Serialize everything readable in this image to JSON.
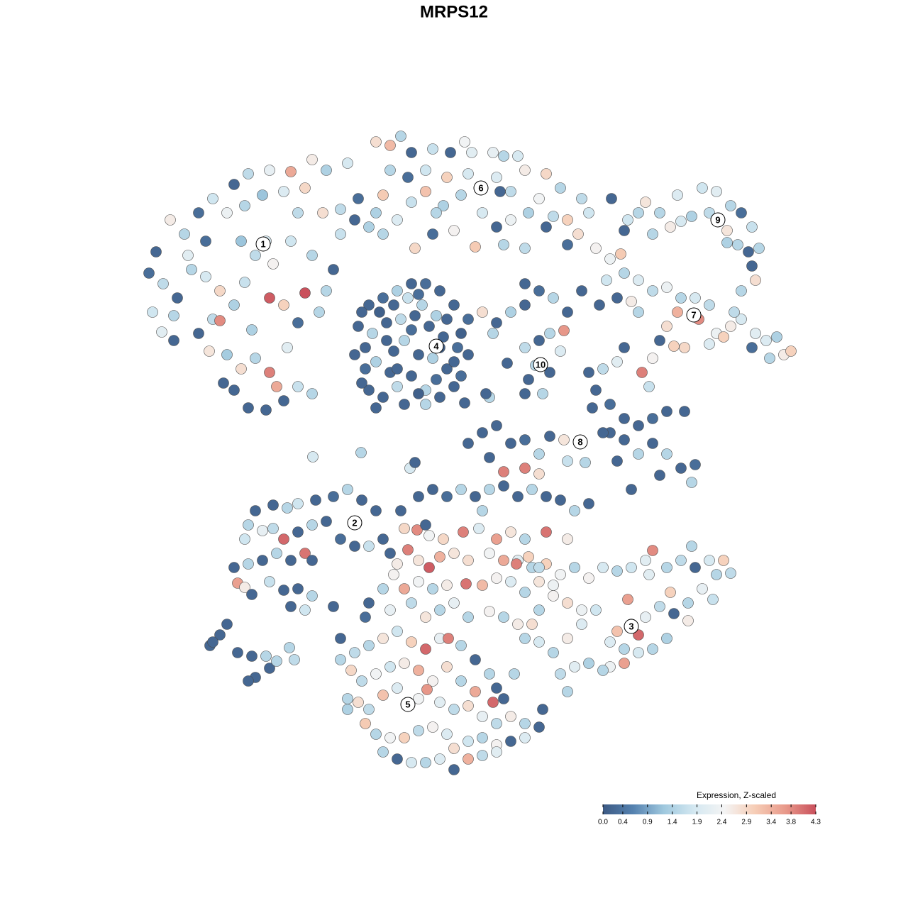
{
  "chart_data": {
    "type": "scatter",
    "title": "MRPS12",
    "xlim": [
      0,
      1280
    ],
    "ylim": [
      1280,
      0
    ],
    "x": [
      220,
      240,
      260,
      280,
      300,
      330,
      350,
      380,
      410,
      440,
      460,
      490,
      320,
      345,
      370,
      400,
      430,
      455,
      480,
      505,
      520,
      210,
      230,
      250,
      215,
      228,
      245,
      270,
      290,
      310,
      330,
      300,
      310,
      280,
      295,
      320,
      340,
      360,
      380,
      390,
      420,
      405,
      420,
      400,
      380,
      430,
      360,
      385,
      410,
      440,
      470,
      460,
      355,
      330,
      350,
      375,
      315,
      400,
      480,
      500,
      530,
      345,
      290,
      265,
      450,
      375,
      340,
      420,
      245,
      440,
      530,
      550,
      565,
      580,
      610,
      635,
      665,
      695,
      710,
      730,
      740,
      770,
      790,
      820,
      830,
      600,
      630,
      660,
      700,
      720,
      760,
      800,
      815,
      600,
      625,
      650,
      680,
      700,
      720,
      745,
      770,
      540,
      560,
      580,
      585,
      610,
      640,
      670,
      710,
      740,
      780,
      550,
      575,
      800,
      540,
      655,
      705,
      615,
      862,
      880,
      900,
      910,
      930,
      955,
      975,
      990,
      1010,
      1030,
      1045,
      1060,
      1025,
      1000,
      945,
      920,
      885,
      1055,
      1065,
      1060,
      1040,
      1070,
      1045,
      1025,
      960,
      840,
      860,
      875,
      880,
      900,
      920,
      940,
      960,
      980,
      1000,
      985,
      955,
      940,
      1010,
      1030,
      1045,
      1065,
      1080,
      1095,
      1105,
      1085,
      1115,
      1060,
      1035,
      1020,
      1000,
      855,
      870,
      900,
      890,
      950,
      965,
      930,
      520,
      540,
      560,
      580,
      600,
      620,
      640,
      660,
      505,
      525,
      545,
      565,
      585,
      595,
      605,
      625,
      645,
      660,
      500,
      515,
      530,
      555,
      570,
      590,
      610,
      630,
      650,
      520,
      540,
      560,
      580,
      600,
      620,
      640,
      530,
      570,
      600,
      550,
      575,
      615,
      680,
      700,
      720,
      740,
      760,
      780,
      800,
      820,
      845,
      740,
      695,
      510,
      535,
      555,
      590,
      630,
      650,
      515,
      545,
      580,
      620,
      640,
      560,
      590,
      615,
      510,
      740,
      760,
      775,
      795,
      790,
      755,
      775,
      745,
      765,
      740,
      715,
      830,
      850,
      870,
      880,
      905,
      920,
      915,
      840,
      835,
      860,
      880,
      900,
      920,
      940,
      965,
      880,
      870,
      900,
      920,
      940,
      960,
      975,
      890,
      930,
      980,
      860,
      795,
      775,
      800,
      760,
      740,
      710,
      690,
      720,
      740,
      680,
      660,
      700,
      690,
      685,
      655,
      760,
      825,
      850,
      441,
      509,
      578,
      585,
      360,
      385,
      405,
      420,
      445,
      470,
      490,
      510,
      530,
      350,
      370,
      385,
      400,
      420,
      440,
      460,
      480,
      500,
      520,
      345,
      330,
      350,
      370,
      390,
      410,
      430,
      440,
      335,
      345,
      355,
      380,
      400,
      420,
      440,
      470,
      410,
      430,
      550,
      540,
      296,
      310,
      320,
      335,
      355,
      375,
      380,
      360,
      390,
      408,
      415,
      350,
      300,
      730,
      750,
      770,
      790,
      810,
      830,
      850,
      870,
      890,
      910,
      920,
      940,
      960,
      980,
      1000,
      1020,
      1010,
      990,
      970,
      950,
      970,
      930,
      910,
      890,
      900,
      885,
      870,
      860,
      880,
      900,
      920,
      940,
      860,
      880,
      850,
      830,
      810,
      790,
      800,
      780,
      800,
      820,
      840,
      820,
      800,
      780,
      760,
      750,
      740,
      760,
      975,
      1030,
      1005,
      915,
      945,
      590,
      610,
      630,
      650,
      670,
      690,
      710,
      730,
      750,
      770,
      790,
      810,
      830,
      570,
      588,
      605,
      625,
      653,
      675,
      700,
      720,
      740,
      770,
      800,
      575,
      590,
      605,
      620,
      640,
      660,
      690,
      710,
      728,
      745,
      760,
      560,
      555,
      570,
      590,
      610,
      630,
      657,
      680,
      700,
      720,
      740,
      760,
      780,
      540,
      520,
      550,
      580,
      600,
      620,
      640,
      660,
      690,
      710,
      730,
      515,
      600,
      565,
      680,
      480,
      500,
      520,
      540,
      560,
      580,
      600,
      620,
      632,
      650,
      670,
      690,
      700,
      480,
      495,
      510,
      530,
      550,
      570,
      590,
      610,
      630,
      650,
      670,
      695,
      710,
      490,
      505,
      520,
      540,
      560,
      590,
      602,
      620,
      640,
      660,
      680,
      700,
      720,
      740,
      760,
      515,
      530,
      550,
      570,
      590,
      610,
      630,
      640,
      660,
      680,
      700,
      720,
      540,
      560,
      580,
      600,
      620,
      640,
      660,
      680,
      700,
      740,
      765,
      725,
      490
    ],
    "y": [
      355,
      310,
      330,
      300,
      280,
      260,
      245,
      240,
      242,
      225,
      240,
      230,
      300,
      290,
      275,
      270,
      265,
      300,
      295,
      280,
      320,
      385,
      400,
      420,
      440,
      468,
      480,
      380,
      390,
      410,
      430,
      450,
      452,
      470,
      495,
      500,
      520,
      505,
      525,
      545,
      545,
      490,
      455,
      430,
      420,
      413,
      360,
      372,
      340,
      360,
      380,
      410,
      465,
      550,
      575,
      578,
      540,
      565,
      330,
      310,
      300,
      398,
      340,
      360,
      440,
      340,
      340,
      300,
      445,
      555,
      200,
      205,
      192,
      215,
      210,
      215,
      215,
      215,
      220,
      220,
      240,
      245,
      265,
      280,
      300,
      240,
      250,
      245,
      250,
      270,
      280,
      310,
      330,
      270,
      290,
      275,
      300,
      320,
      310,
      300,
      320,
      330,
      310,
      285,
      350,
      330,
      325,
      348,
      345,
      350,
      305,
      240,
      250,
      345,
      275,
      200,
      270,
      300,
      280,
      325,
      300,
      285,
      300,
      275,
      305,
      265,
      270,
      290,
      300,
      320,
      325,
      300,
      320,
      330,
      310,
      355,
      395,
      375,
      345,
      350,
      410,
      342,
      312,
      350,
      365,
      358,
      385,
      395,
      410,
      405,
      420,
      420,
      430,
      450,
      440,
      460,
      470,
      460,
      450,
      470,
      480,
      475,
      500,
      505,
      495,
      490,
      440,
      475,
      485,
      395,
      420,
      440,
      425,
      488,
      490,
      480,
      430,
      420,
      410,
      400,
      400,
      410,
      430,
      450,
      460,
      470,
      455,
      450,
      445,
      430,
      460,
      475,
      490,
      500,
      500,
      520,
      510,
      495,
      480,
      500,
      505,
      520,
      530,
      550,
      560,
      545,
      530,
      550,
      560,
      545,
      575,
      570,
      570,
      525,
      420,
      445,
      440,
      455,
      440,
      430,
      410,
      420,
      440,
      410,
      430,
      400,
      470,
      440,
      440,
      430,
      415,
      450,
      470,
      490,
      480,
      465,
      490,
      510,
      520,
      555,
      535,
      540,
      490,
      480,
      470,
      466,
      495,
      515,
      525,
      535,
      555,
      555,
      512,
      525,
      520,
      510,
      490,
      525,
      505,
      545,
      550,
      575,
      570,
      590,
      600,
      590,
      580,
      580,
      620,
      650,
      640,
      625,
      640,
      660,
      680,
      690,
      670,
      655,
      610,
      620,
      615,
      650,
      640,
      660,
      665,
      645,
      625,
      620,
      610,
      625,
      600,
      560,
      555,
      568,
      668,
      652,
      610,
      644,
      638,
      660,
      652,
      720,
      712,
      716,
      710,
      705,
      700,
      690,
      705,
      720,
      740,
      748,
      745,
      760,
      750,
      740,
      735,
      760,
      770,
      770,
      760,
      800,
      795,
      790,
      780,
      790,
      780,
      790,
      822,
      828,
      838,
      820,
      832,
      830,
      840,
      855,
      855,
      860,
      780,
      760,
      910,
      895,
      880,
      920,
      925,
      925,
      942,
      955,
      932,
      913,
      930,
      960,
      905,
      790,
      800,
      795,
      810,
      800,
      815,
      800,
      805,
      800,
      790,
      776,
      800,
      790,
      800,
      790,
      790,
      810,
      830,
      850,
      865,
      875,
      855,
      870,
      880,
      895,
      845,
      890,
      905,
      915,
      920,
      915,
      900,
      940,
      935,
      945,
      935,
      940,
      950,
      975,
      920,
      900,
      880,
      860,
      860,
      850,
      840,
      860,
      880,
      900,
      905,
      770,
      808,
      845,
      810,
      835,
      700,
      690,
      700,
      690,
      700,
      690,
      685,
      700,
      690,
      700,
      705,
      720,
      710,
      745,
      747,
      755,
      760,
      750,
      745,
      760,
      750,
      760,
      750,
      760,
      775,
      790,
      800,
      785,
      780,
      790,
      780,
      790,
      795,
      785,
      800,
      795,
      810,
      830,
      820,
      830,
      825,
      823,
      825,
      815,
      820,
      835,
      820,
      825,
      830,
      850,
      860,
      850,
      870,
      860,
      850,
      870,
      862,
      870,
      880,
      870,
      740,
      720,
      720,
      900,
      920,
      910,
      900,
      890,
      905,
      915,
      900,
      900,
      910,
      930,
      950,
      970,
      930,
      945,
      960,
      950,
      940,
      935,
      945,
      960,
      940,
      960,
      975,
      990,
      985,
      985,
      990,
      1000,
      980,
      970,
      985,
      972,
      990,
      1000,
      995,
      1010,
      1020,
      1010,
      1020,
      1025,
      1020,
      1035,
      1040,
      1040,
      1030,
      1025,
      1035,
      1055,
      1045,
      1040,
      1050,
      1045,
      1060,
      1070,
      1075,
      1075,
      1070,
      1085,
      1070,
      1065,
      1060,
      1040,
      1000,
      950,
      1000
    ],
    "values": [
      0.2,
      2.6,
      1.5,
      0.3,
      1.8,
      0.2,
      1.6,
      2.2,
      3.5,
      2.6,
      1.4,
      1.9,
      2.3,
      1.5,
      1.2,
      2.0,
      2.9,
      2.8,
      1.6,
      0.3,
      1.4,
      0.3,
      1.6,
      0.2,
      1.8,
      2.1,
      0.2,
      1.5,
      1.9,
      2.9,
      1.4,
      1.6,
      3.8,
      0.2,
      2.7,
      1.3,
      2.8,
      1.5,
      3.9,
      3.5,
      1.7,
      2.1,
      0.3,
      3.0,
      4.2,
      4.3,
      1.6,
      2.5,
      1.8,
      1.5,
      0.2,
      1.5,
      1.4,
      0.2,
      0.2,
      0.2,
      0.2,
      0.2,
      1.7,
      0.2,
      1.4,
      1.7,
      0.3,
      2.1,
      1.5,
      1.9,
      1.2,
      1.6,
      1.5,
      1.5,
      2.8,
      3.3,
      1.5,
      0.2,
      1.7,
      0.2,
      2.1,
      2.2,
      1.5,
      1.9,
      2.6,
      2.9,
      1.5,
      1.6,
      1.8,
      1.8,
      3.0,
      1.9,
      2.0,
      1.6,
      2.4,
      3.0,
      2.8,
      3.2,
      1.4,
      1.5,
      1.9,
      0.2,
      2.3,
      1.4,
      0.2,
      1.5,
      2.0,
      1.7,
      2.9,
      0.3,
      2.5,
      3.1,
      1.5,
      1.6,
      1.6,
      1.5,
      0.3,
      0.3,
      3.1,
      2.4,
      0.2,
      1.5,
      0.2,
      0.2,
      1.5,
      2.7,
      1.5,
      2.0,
      1.4,
      1.8,
      2.1,
      1.5,
      0.3,
      1.7,
      2.7,
      1.6,
      2.6,
      1.5,
      1.8,
      0.2,
      2.8,
      0.2,
      1.5,
      1.5,
      1.5,
      1.4,
      1.9,
      2.5,
      2.3,
      3.1,
      1.5,
      2.0,
      1.6,
      2.3,
      1.5,
      1.9,
      1.6,
      3.8,
      3.4,
      2.8,
      2.3,
      2.6,
      1.9,
      2.1,
      2.0,
      1.4,
      2.6,
      1.5,
      3.0,
      0.3,
      1.6,
      3.0,
      2.0,
      1.8,
      0.2,
      1.5,
      2.6,
      3.0,
      2.9,
      0.2,
      0.2,
      0.3,
      1.4,
      0.2,
      0.3,
      0.2,
      0.2,
      0.3,
      0.2,
      1.5,
      0.2,
      1.6,
      0.2,
      1.5,
      0.2,
      0.2,
      0.3,
      0.2,
      0.2,
      0.3,
      1.4,
      0.2,
      1.5,
      0.2,
      1.4,
      0.2,
      0.3,
      0.2,
      0.2,
      1.6,
      0.2,
      1.5,
      0.2,
      0.2,
      0.2,
      0.2,
      1.5,
      0.2,
      1.7,
      1.4,
      2.8,
      0.2,
      1.4,
      0.2,
      0.3,
      1.5,
      0.2,
      0.2,
      0.2,
      0.2,
      1.5,
      0.2,
      0.1,
      0.2,
      0.3,
      0.2,
      0.1,
      0.2,
      0.2,
      0.3,
      0.1,
      0.2,
      0.2,
      0.1,
      0.3,
      0.2,
      1.6,
      0.2,
      1.5,
      3.7,
      2.0,
      1.5,
      0.2,
      0.2,
      1.5,
      0.2,
      0.2,
      0.2,
      1.6,
      2.1,
      0.2,
      3.9,
      2.5,
      1.7,
      0.2,
      0.2,
      0.3,
      0.2,
      0.2,
      0.3,
      0.2,
      0.2,
      0.2,
      0.2,
      1.5,
      0.2,
      1.5,
      0.2,
      1.5,
      0.2,
      0.2,
      0.3,
      0.2,
      2.7,
      0.2,
      1.7,
      1.5,
      3.9,
      3.9,
      0.2,
      0.2,
      0.3,
      0.2,
      0.2,
      0.2,
      1.5,
      0.2,
      0.2,
      2.8,
      1.5,
      0.2,
      1.9,
      1.5,
      1.9,
      0.2,
      0.2,
      0.2,
      1.5,
      1.8,
      0.2,
      0.3,
      1.5,
      0.2,
      0.2,
      1.5,
      2.2,
      1.6,
      4.1,
      0.2,
      1.5,
      0.2,
      0.3,
      0.2,
      1.7,
      1.8,
      0.2,
      1.5,
      0.2,
      1.5,
      0.2,
      4.0,
      0.2,
      3.6,
      2.6,
      0.2,
      1.7,
      0.2,
      0.2,
      1.5,
      0.2,
      0.2,
      1.8,
      0.2,
      0.2,
      0.2,
      0.2,
      0.2,
      0.2,
      0.2,
      1.5,
      0.2,
      0.2,
      1.5,
      1.5,
      1.6,
      0.2,
      0.2,
      2.1,
      1.5,
      3.0,
      2.4,
      1.5,
      2.5,
      1.9,
      1.5,
      1.8,
      2.1,
      3.8,
      1.5,
      1.6,
      0.2,
      1.9,
      3.0,
      1.5,
      2.2,
      1.5,
      0.2,
      2.6,
      1.6,
      2.2,
      2.4,
      4.1,
      3.6,
      3.2,
      2.0,
      1.5,
      1.9,
      1.5,
      1.4,
      2.3,
      3.6,
      1.5,
      1.4,
      2.1,
      1.6,
      1.5,
      1.5,
      2.6,
      2.0,
      1.8,
      2.3,
      2.8,
      2.5,
      1.5,
      2.8,
      1.5,
      1.9,
      1.5,
      1.6,
      1.7,
      2.1,
      3.0,
      0.2,
      0.2,
      0.3,
      1.5,
      0.2,
      1.5,
      0.2,
      0.2,
      1.5,
      0.2,
      0.2,
      1.5,
      0.2,
      2.9,
      3.8,
      2.4,
      2.9,
      3.9,
      2.0,
      3.6,
      2.7,
      1.5,
      4.0,
      2.6,
      3.9,
      2.7,
      4.2,
      3.4,
      2.7,
      2.8,
      2.4,
      3.5,
      3.9,
      3.0,
      1.6,
      2.6,
      2.5,
      3.5,
      2.4,
      1.5,
      2.6,
      4.0,
      3.3,
      2.5,
      2.0,
      1.5,
      2.7,
      2.3,
      1.5,
      0.2,
      2.2,
      1.6,
      2.7,
      1.5,
      2.2,
      1.5,
      2.5,
      1.5,
      2.6,
      0.3,
      0.2,
      0.2,
      1.5,
      0.2,
      1.6,
      1.5,
      2.7,
      1.8,
      3.0,
      4.1,
      2.2,
      3.9,
      1.5,
      0.2,
      1.5,
      0.2,
      1.5,
      2.9,
      1.6,
      2.4,
      1.8,
      2.6,
      3.4,
      2.5,
      2.8,
      1.5,
      3.5,
      4.1,
      0.2,
      1.5,
      2.8,
      1.6,
      3.2,
      2.0,
      2.4,
      3.7,
      2.1,
      1.6,
      2.8,
      2.2,
      1.6,
      2.6,
      1.5,
      0.2,
      3.1,
      1.5,
      2.4,
      3.0,
      1.6,
      2.5,
      2.0,
      2.8,
      1.8,
      1.5,
      2.5,
      0.2,
      1.5,
      0.2,
      1.9,
      1.5,
      2.0,
      0.2,
      3.4,
      1.6,
      2.1,
      2.0,
      0.2,
      1.5,
      1.4
    ],
    "clusters": [
      {
        "label": "1",
        "x": 371,
        "y": 344
      },
      {
        "label": "2",
        "x": 500,
        "y": 737
      },
      {
        "label": "3",
        "x": 890,
        "y": 883
      },
      {
        "label": "4",
        "x": 615,
        "y": 488
      },
      {
        "label": "5",
        "x": 575,
        "y": 993
      },
      {
        "label": "6",
        "x": 678,
        "y": 265
      },
      {
        "label": "7",
        "x": 978,
        "y": 444
      },
      {
        "label": "8",
        "x": 818,
        "y": 623
      },
      {
        "label": "9",
        "x": 1012,
        "y": 310
      },
      {
        "label": "10",
        "x": 762,
        "y": 514
      }
    ],
    "colorbar": {
      "title": "Expression, Z-scaled",
      "clim": [
        0,
        4.3
      ],
      "colors": [
        "#3d5a84",
        "#5582b0",
        "#9fc8de",
        "#d4e8f1",
        "#f4f4f4",
        "#f6cdb6",
        "#e8998a",
        "#c9505c"
      ],
      "ticks": [
        {
          "value": 0,
          "label": "0.0"
        },
        0.4,
        0.9,
        1.4,
        1.9,
        2.4,
        2.9,
        3.4,
        3.8,
        4.3
      ]
    }
  }
}
